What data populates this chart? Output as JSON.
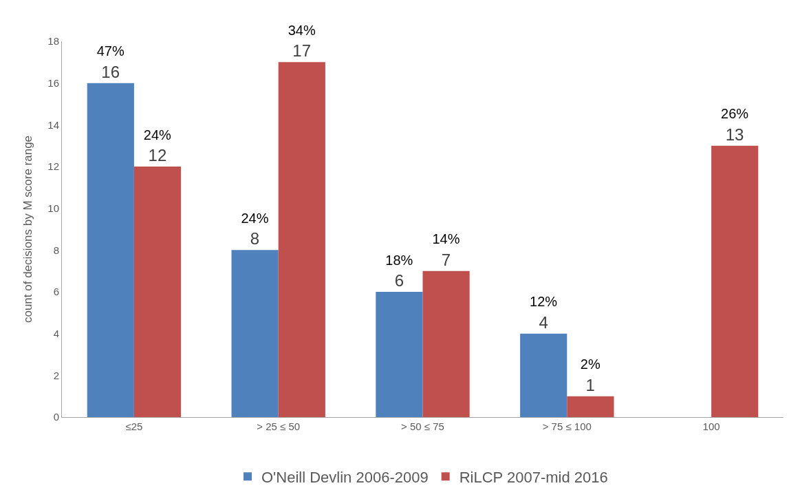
{
  "chart_data": {
    "type": "bar",
    "ylabel": "count of decisions by M score range",
    "categories": [
      "≤25",
      "> 25 ≤ 50",
      "> 50 ≤ 75",
      "> 75 ≤ 100",
      "100"
    ],
    "series": [
      {
        "name": "O'Neill Devlin 2006-2009",
        "color": "#4f81bd",
        "values": [
          16,
          8,
          6,
          4,
          null
        ],
        "value_labels": [
          "47%\n16",
          "24%\n8",
          "18%\n6",
          "12%\n4",
          null
        ]
      },
      {
        "name": "RiLCP 2007-mid 2016",
        "color": "#c0504d",
        "values": [
          12,
          17,
          7,
          1,
          13
        ],
        "value_labels": [
          "24%\n12",
          "34%\n17",
          "14%\n7",
          "2%\n1",
          "26%\n13"
        ]
      }
    ],
    "ylim": [
      0,
      18
    ],
    "yticks": [
      0,
      2,
      4,
      6,
      8,
      10,
      12,
      14,
      16,
      18
    ],
    "grid": false,
    "legend": "bottom"
  }
}
